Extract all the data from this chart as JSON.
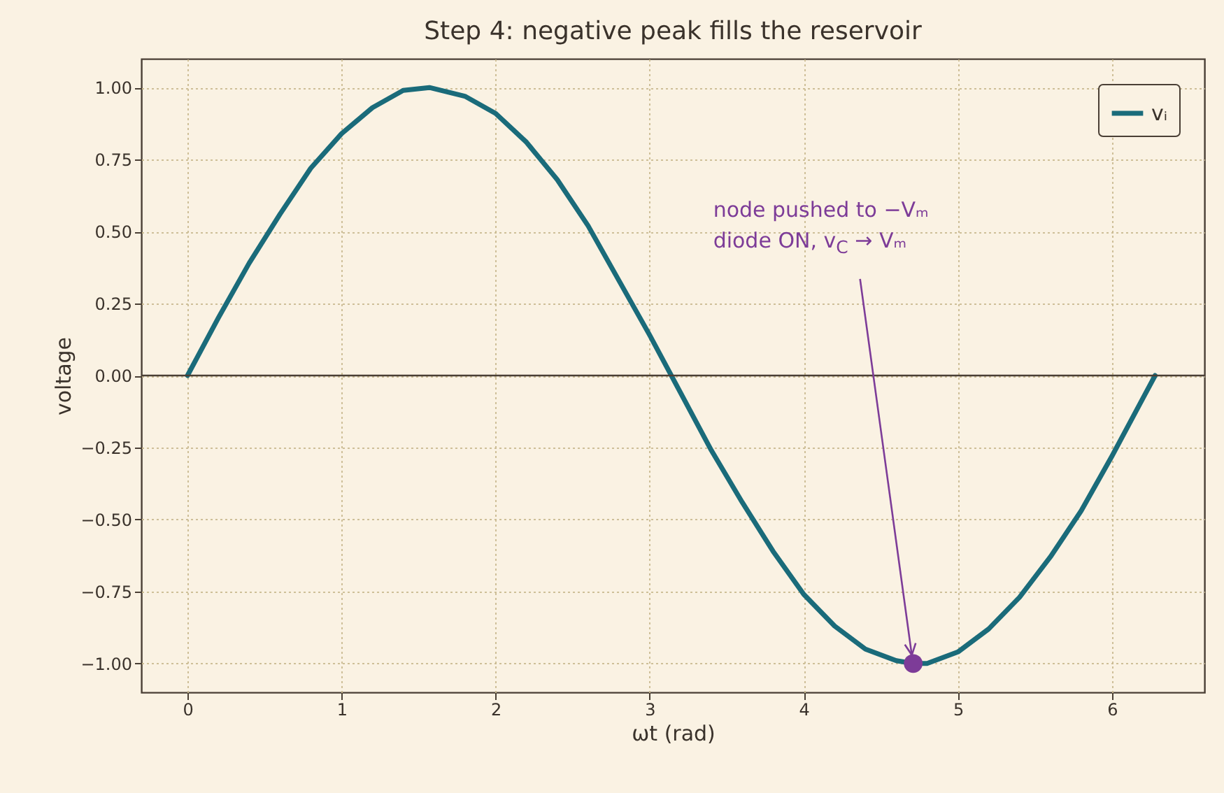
{
  "chart_data": {
    "type": "line",
    "title": "Step 4: negative peak fills the reservoir",
    "xlabel": "ωt (rad)",
    "ylabel": "voltage",
    "series": [
      {
        "name": "vᵢ",
        "color": "#1a6b7a",
        "x": [
          0,
          0.2,
          0.4,
          0.6,
          0.8,
          1.0,
          1.2,
          1.4,
          1.57,
          1.8,
          2.0,
          2.2,
          2.4,
          2.6,
          2.8,
          3.0,
          3.2,
          3.4,
          3.6,
          3.8,
          4.0,
          4.2,
          4.4,
          4.6,
          4.71,
          4.8,
          5.0,
          5.2,
          5.4,
          5.6,
          5.8,
          6.0,
          6.2,
          6.28
        ],
        "values": [
          0,
          0.2,
          0.39,
          0.56,
          0.72,
          0.84,
          0.93,
          0.99,
          1.0,
          0.97,
          0.91,
          0.81,
          0.68,
          0.52,
          0.33,
          0.14,
          -0.06,
          -0.26,
          -0.44,
          -0.61,
          -0.76,
          -0.87,
          -0.95,
          -0.99,
          -1.0,
          -1.0,
          -0.96,
          -0.88,
          -0.77,
          -0.63,
          -0.47,
          -0.28,
          -0.08,
          0
        ]
      },
      {
        "type": "scatter",
        "color": "#7d3c98",
        "x": [
          4.71
        ],
        "values": [
          -1.0
        ]
      }
    ],
    "annotations": [
      {
        "text": "node pushed to −Vₘ\ndiode ON, v$_{C}$ → Vₘ",
        "x": 4.71,
        "y": -1.0
      }
    ],
    "ref_lines": [
      {
        "axis": "y",
        "value": 0,
        "color": "#4a3f35"
      }
    ],
    "xlim": [
      -0.3,
      6.6
    ],
    "ylim": [
      -1.1,
      1.1
    ],
    "xticks": [
      0,
      1,
      2,
      3,
      4,
      5,
      6
    ],
    "yticks": [
      {
        "value": -1,
        "label": "−1.00"
      },
      {
        "value": -0.75,
        "label": "−0.75"
      },
      {
        "value": -0.5,
        "label": "−0.50"
      },
      {
        "value": -0.25,
        "label": "−0.25"
      },
      {
        "value": 0,
        "label": "0.00"
      },
      {
        "value": 0.25,
        "label": "0.25"
      },
      {
        "value": 0.5,
        "label": "0.50"
      },
      {
        "value": 0.75,
        "label": "0.75"
      },
      {
        "value": 1,
        "label": "1.00"
      }
    ],
    "grid": true,
    "legend": "top right"
  }
}
